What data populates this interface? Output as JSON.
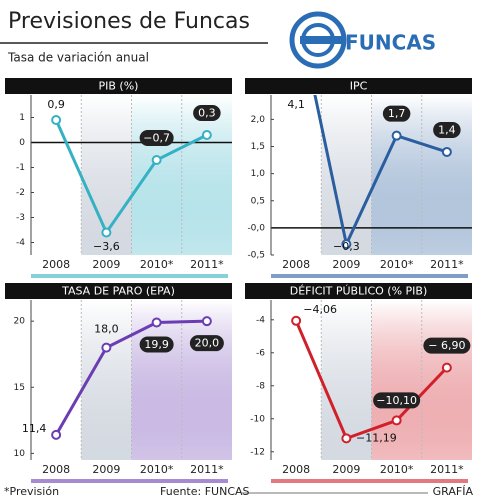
{
  "title": "Previsiones de Funcas",
  "subtitle": "Tasa de variación anual",
  "logo": "FUNCAS",
  "footer": {
    "note": "*Previsión",
    "source": "Fuente: FUNCAS",
    "agency": "GRAFÍA"
  },
  "chart_data": [
    {
      "type": "line",
      "title": "PIB (%)",
      "color": "#35b1c4",
      "categories": [
        "2008",
        "2009",
        "2010*",
        "2011*"
      ],
      "values": [
        0.9,
        -3.6,
        -0.7,
        0.3
      ],
      "value_labels": [
        "0,9",
        "−3,6",
        "−0,7",
        "0,3"
      ],
      "ylim": [
        -4.5,
        1.9
      ],
      "yticks": [
        1,
        0,
        -1,
        -2,
        -3,
        -4
      ]
    },
    {
      "type": "line",
      "title": "IPC",
      "color": "#2a5e9e",
      "categories": [
        "2008",
        "2009",
        "2010*",
        "2011*"
      ],
      "values": [
        4.1,
        -0.3,
        1.7,
        1.4
      ],
      "value_labels": [
        "4,1",
        "−0,3",
        "1,7",
        "1,4"
      ],
      "ylim": [
        -0.5,
        2.45
      ],
      "yticks": [
        {
          "value": 2,
          "label": "2,0"
        },
        {
          "value": 1.5,
          "label": "1,5"
        },
        {
          "value": 1,
          "label": "1,0"
        },
        {
          "value": 0.5,
          "label": "0,5"
        },
        {
          "value": 0,
          "label": "-0,0"
        },
        {
          "value": -0.5,
          "label": "-0,5"
        }
      ]
    },
    {
      "type": "line",
      "title": "TASA DE PARO (EPA)",
      "color": "#6a3db3",
      "categories": [
        "2008",
        "2009",
        "2010*",
        "2011*"
      ],
      "values": [
        11.4,
        18.0,
        19.9,
        20.0
      ],
      "value_labels": [
        "11,4",
        "18,0",
        "19,9",
        "20,0"
      ],
      "ylim": [
        9.5,
        21.6
      ],
      "yticks": [
        20,
        15,
        10
      ]
    },
    {
      "type": "line",
      "title": "DÉFICIT PÚBLICO (% PIB)",
      "color": "#d0202a",
      "categories": [
        "2008",
        "2009",
        "2010*",
        "2011*"
      ],
      "values": [
        -4.06,
        -11.19,
        -10.1,
        -6.9
      ],
      "value_labels": [
        "−4,06",
        "−11,19",
        "−10,10",
        "− 6,90"
      ],
      "ylim": [
        -12.5,
        -2.8
      ],
      "yticks": [
        -4,
        -6,
        -8,
        -10,
        -12
      ]
    }
  ]
}
